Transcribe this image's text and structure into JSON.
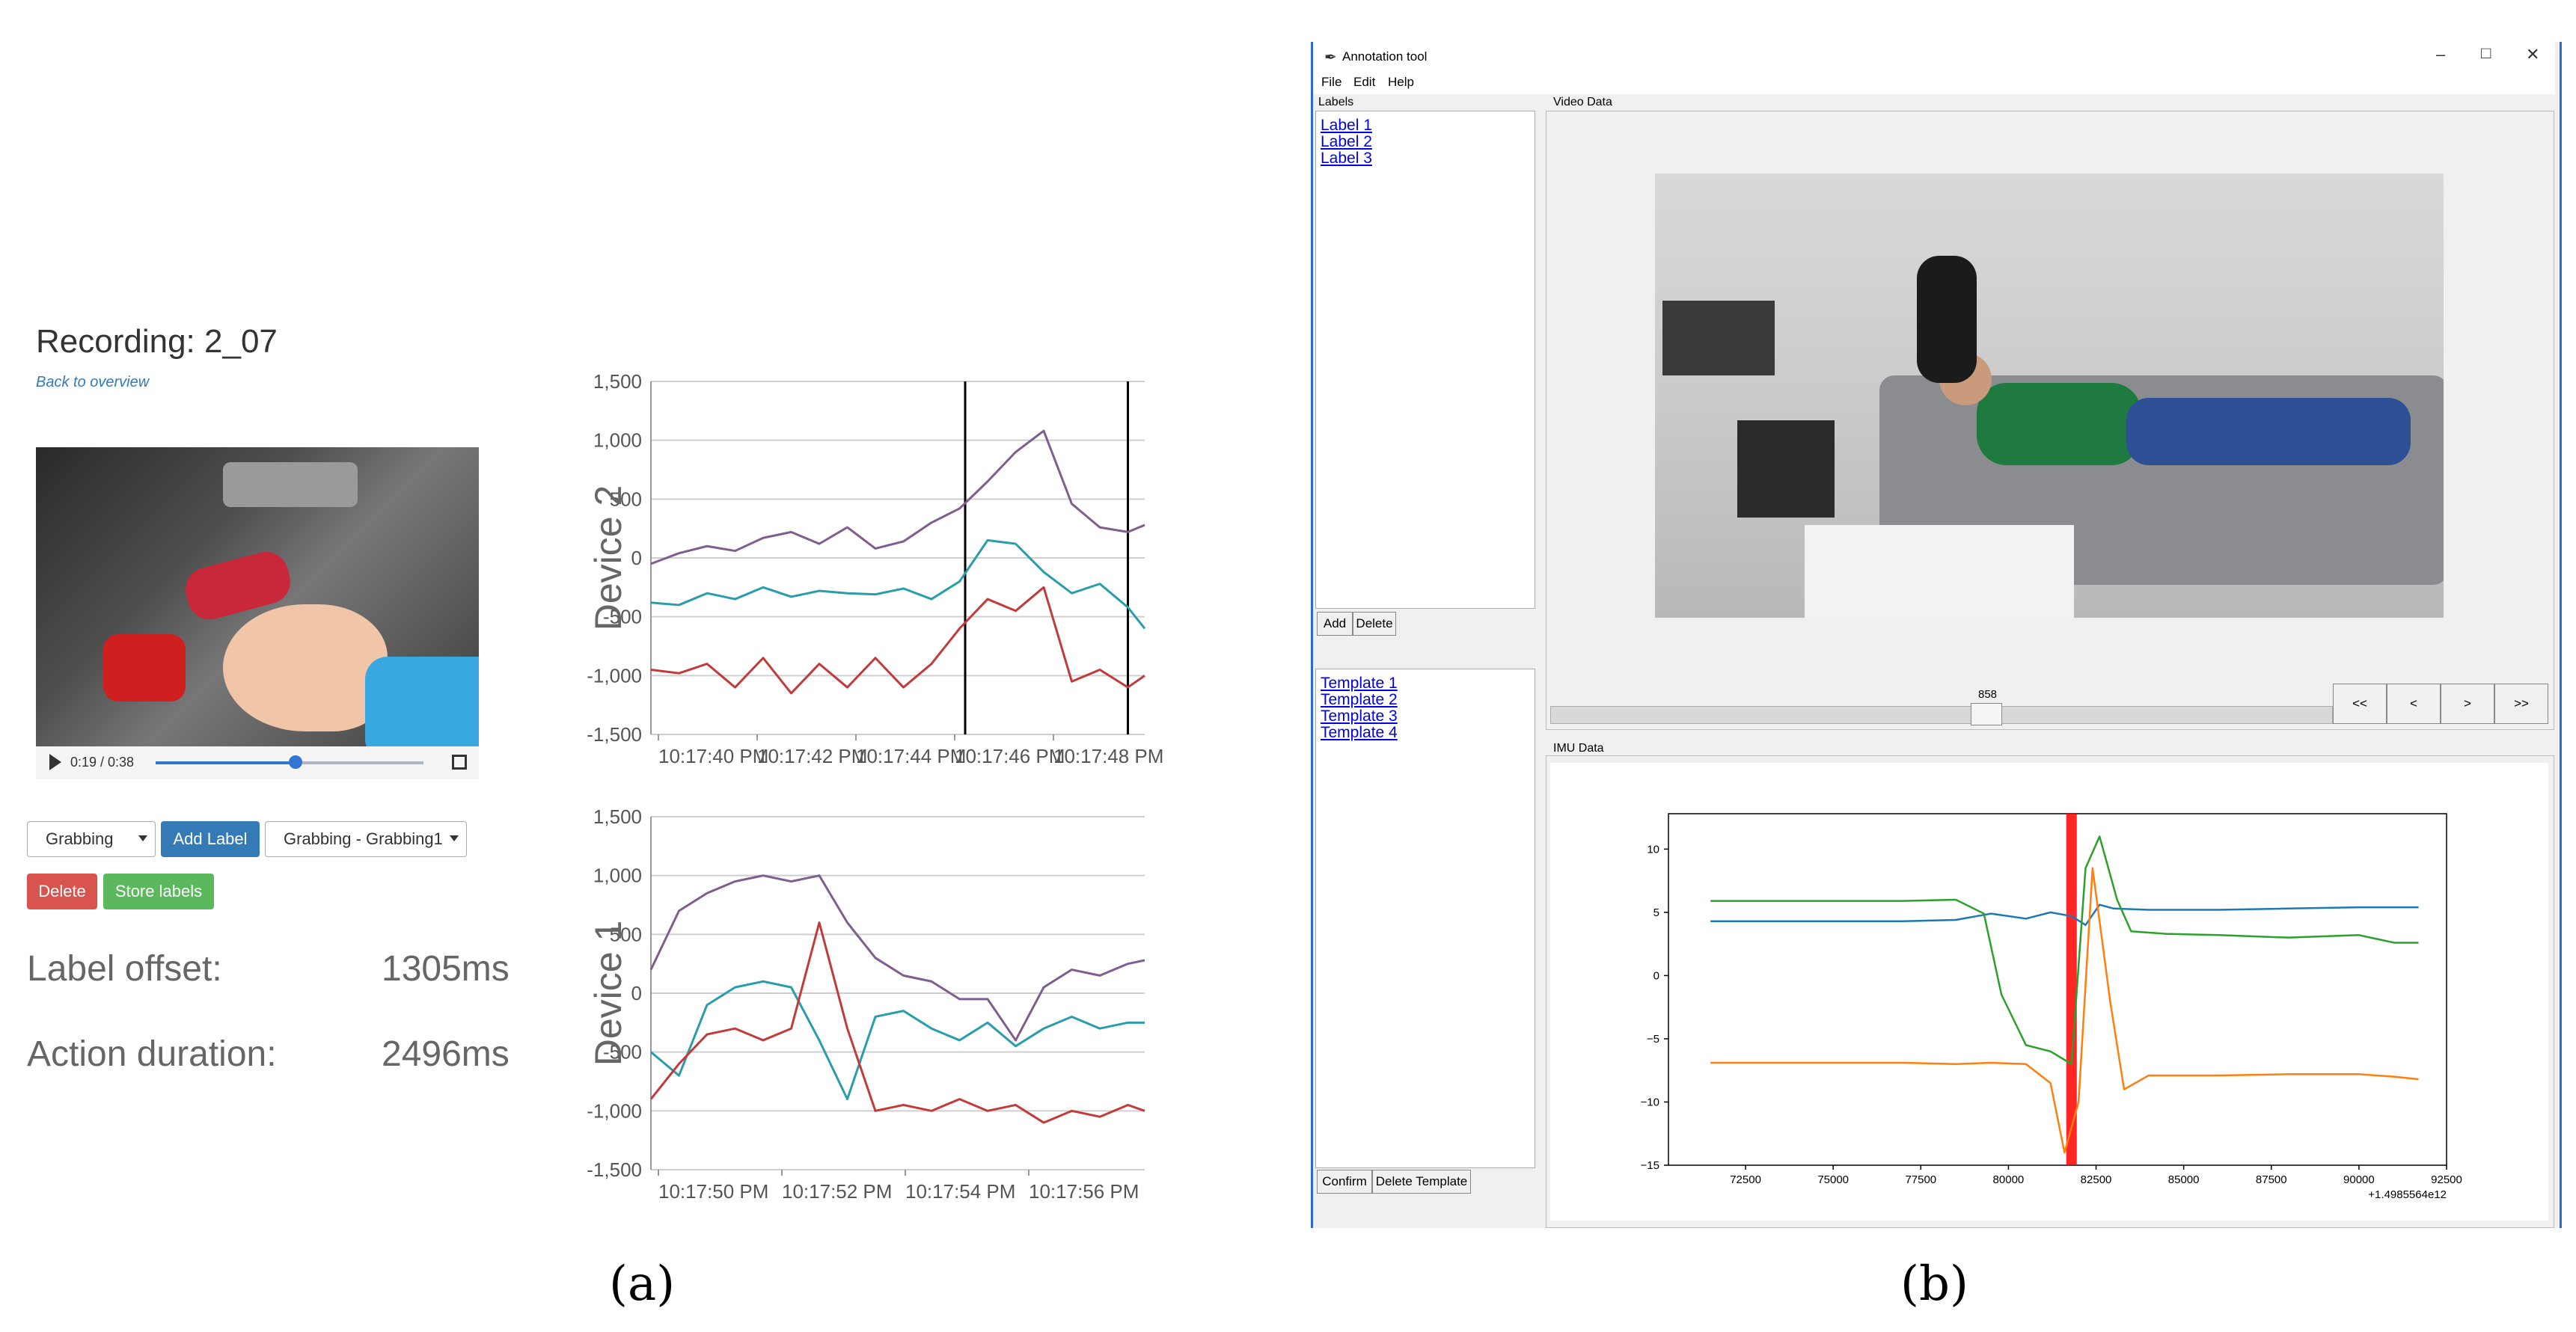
{
  "panel_a": {
    "recording_title": "Recording: 2_07",
    "back_link": "Back to overview",
    "video_time": "0:19 / 0:38",
    "video_progress": 0.5,
    "label_select": "Grabbing",
    "add_label_button": "Add Label",
    "label_instance_select": "Grabbing - Grabbing1",
    "delete_button": "Delete",
    "store_button": "Store labels",
    "label_offset_label": "Label offset:",
    "label_offset_value": "1305ms",
    "action_duration_label": "Action duration:",
    "action_duration_value": "2496ms",
    "caption": "(a)"
  },
  "panel_b": {
    "window_title": "Annotation tool",
    "menu": [
      "File",
      "Edit",
      "Help"
    ],
    "labels_frame": "Labels",
    "labels": [
      "Label 1",
      "Label 2",
      "Label 3"
    ],
    "add_button": "Add",
    "delete_button": "Delete",
    "templates": [
      "Template 1",
      "Template 2",
      "Template 3",
      "Template 4"
    ],
    "confirm_button": "Confirm",
    "delete_template_button": "Delete Template",
    "video_frame": "Video Data",
    "frame_number": "858",
    "nav_buttons": [
      "<<",
      "<",
      ">",
      ">>"
    ],
    "imu_frame": "IMU Data",
    "caption": "(b)"
  },
  "chart_data": [
    {
      "type": "line",
      "ylabel": "Device 2",
      "yticks": [
        "1,500",
        "1,000",
        "500",
        "0",
        "-500",
        "-1,000",
        "-1,500"
      ],
      "xticks": [
        "10:17:40 PM",
        "10:17:42 PM",
        "10:17:44 PM",
        "10:17:46 PM",
        "10:17:48 PM"
      ],
      "ylim": [
        -1500,
        1500
      ],
      "xlim": [
        0,
        8.8
      ],
      "vlines": [
        5.6,
        8.5
      ],
      "series": [
        {
          "color": "#7f5d8f",
          "x": [
            0,
            0.5,
            1,
            1.5,
            2,
            2.5,
            3,
            3.5,
            4,
            4.5,
            5,
            5.5,
            6,
            6.5,
            7,
            7.5,
            8,
            8.5,
            8.8
          ],
          "values": [
            -50,
            40,
            100,
            60,
            170,
            220,
            120,
            260,
            80,
            140,
            300,
            420,
            650,
            900,
            1080,
            460,
            260,
            220,
            280
          ]
        },
        {
          "color": "#2a9daa",
          "x": [
            0,
            0.5,
            1,
            1.5,
            2,
            2.5,
            3,
            3.5,
            4,
            4.5,
            5,
            5.5,
            6,
            6.5,
            7,
            7.5,
            8,
            8.5,
            8.8
          ],
          "values": [
            -380,
            -400,
            -300,
            -350,
            -250,
            -330,
            -280,
            -300,
            -310,
            -260,
            -350,
            -200,
            150,
            120,
            -120,
            -300,
            -220,
            -420,
            -600
          ]
        },
        {
          "color": "#c23b3b",
          "x": [
            0,
            0.5,
            1,
            1.5,
            2,
            2.5,
            3,
            3.5,
            4,
            4.5,
            5,
            5.5,
            6,
            6.5,
            7,
            7.5,
            8,
            8.5,
            8.8
          ],
          "values": [
            -950,
            -980,
            -900,
            -1100,
            -850,
            -1150,
            -900,
            -1100,
            -850,
            -1100,
            -900,
            -600,
            -350,
            -450,
            -250,
            -1050,
            -950,
            -1100,
            -1000
          ]
        }
      ]
    },
    {
      "type": "line",
      "ylabel": "Device 1",
      "yticks": [
        "1,500",
        "1,000",
        "500",
        "0",
        "-500",
        "-1,000",
        "-1,500"
      ],
      "xticks": [
        "10:17:50 PM",
        "10:17:52 PM",
        "10:17:54 PM",
        "10:17:56 PM"
      ],
      "ylim": [
        -1500,
        1500
      ],
      "xlim": [
        0,
        8.8
      ],
      "series": [
        {
          "color": "#7f5d8f",
          "x": [
            0,
            0.5,
            1,
            1.5,
            2,
            2.5,
            3,
            3.5,
            4,
            4.5,
            5,
            5.5,
            6,
            6.5,
            7,
            7.5,
            8,
            8.5,
            8.8
          ],
          "values": [
            200,
            700,
            850,
            950,
            1000,
            950,
            1000,
            600,
            300,
            150,
            100,
            -50,
            -50,
            -400,
            50,
            200,
            150,
            250,
            280
          ]
        },
        {
          "color": "#2a9daa",
          "x": [
            0,
            0.5,
            1,
            1.5,
            2,
            2.5,
            3,
            3.5,
            4,
            4.5,
            5,
            5.5,
            6,
            6.5,
            7,
            7.5,
            8,
            8.5,
            8.8
          ],
          "values": [
            -500,
            -700,
            -100,
            50,
            100,
            50,
            -400,
            -900,
            -200,
            -150,
            -300,
            -400,
            -250,
            -450,
            -300,
            -200,
            -300,
            -250,
            -250
          ]
        },
        {
          "color": "#c23b3b",
          "x": [
            0,
            0.5,
            1,
            1.5,
            2,
            2.5,
            3,
            3.5,
            4,
            4.5,
            5,
            5.5,
            6,
            6.5,
            7,
            7.5,
            8,
            8.5,
            8.8
          ],
          "values": [
            -900,
            -600,
            -350,
            -300,
            -400,
            -300,
            600,
            -300,
            -1000,
            -950,
            -1000,
            -900,
            -1000,
            -950,
            -1100,
            -1000,
            -1050,
            -950,
            -1000
          ]
        }
      ]
    },
    {
      "type": "line",
      "yticks": [
        "10",
        "5",
        "0",
        "−5",
        "−10",
        "−15"
      ],
      "xticks": [
        "72500",
        "75000",
        "77500",
        "80000",
        "82500",
        "85000",
        "87500",
        "90000",
        "92500"
      ],
      "offset_text": "+1.4985564e12",
      "ylim": [
        -15,
        12.8
      ],
      "xlim": [
        70300,
        92500
      ],
      "highlight_span": [
        81650,
        81950
      ],
      "highlight_color": "#ff0000",
      "series": [
        {
          "color": "#1f77b4",
          "x": [
            71500,
            73000,
            75000,
            77000,
            78500,
            79500,
            80500,
            81200,
            81800,
            82200,
            82600,
            83000,
            84000,
            86000,
            88000,
            90000,
            91000,
            91700
          ],
          "values": [
            4.3,
            4.3,
            4.3,
            4.3,
            4.4,
            4.9,
            4.5,
            5.0,
            4.7,
            4.0,
            5.6,
            5.3,
            5.2,
            5.2,
            5.3,
            5.4,
            5.4,
            5.4
          ]
        },
        {
          "color": "#2ca02c",
          "x": [
            71500,
            73000,
            75000,
            77000,
            78500,
            79300,
            79800,
            80500,
            81200,
            81800,
            82200,
            82600,
            83100,
            83500,
            84500,
            86000,
            88000,
            90000,
            91000,
            91700
          ],
          "values": [
            5.9,
            5.9,
            5.9,
            5.9,
            6.0,
            4.9,
            -1.5,
            -5.5,
            -6.0,
            -7.0,
            8.5,
            11.0,
            6.0,
            3.5,
            3.3,
            3.2,
            3.0,
            3.2,
            2.6,
            2.6
          ]
        },
        {
          "color": "#ff7f0e",
          "x": [
            71500,
            73000,
            75000,
            77000,
            78500,
            79500,
            80500,
            81200,
            81600,
            82000,
            82400,
            82900,
            83300,
            84000,
            86000,
            88000,
            90000,
            91000,
            91700
          ],
          "values": [
            -6.9,
            -6.9,
            -6.9,
            -6.9,
            -7.0,
            -6.9,
            -7.0,
            -8.5,
            -14.0,
            -10.0,
            8.5,
            -2.0,
            -9.0,
            -7.9,
            -7.9,
            -7.8,
            -7.8,
            -8.0,
            -8.2
          ]
        }
      ]
    }
  ]
}
